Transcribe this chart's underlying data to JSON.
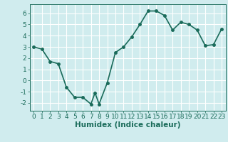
{
  "x": [
    0,
    1,
    2,
    3,
    4,
    5,
    6,
    7,
    7.5,
    8,
    9,
    10,
    11,
    12,
    13,
    14,
    15,
    16,
    17,
    18,
    19,
    20,
    21,
    22,
    23
  ],
  "y": [
    3.0,
    2.8,
    1.7,
    1.5,
    -0.6,
    -1.5,
    -1.5,
    -2.1,
    -1.1,
    -2.1,
    -0.2,
    2.5,
    3.0,
    3.9,
    5.0,
    6.2,
    6.2,
    5.8,
    4.5,
    5.2,
    5.0,
    4.5,
    3.1,
    3.2,
    4.6
  ],
  "line_color": "#1a6b5a",
  "marker_color": "#1a6b5a",
  "bg_color": "#d0ecee",
  "grid_color": "#ffffff",
  "xlabel": "Humidex (Indice chaleur)",
  "xlim": [
    -0.5,
    23.5
  ],
  "ylim": [
    -2.7,
    6.8
  ],
  "xticks": [
    0,
    1,
    2,
    3,
    4,
    5,
    6,
    7,
    8,
    9,
    10,
    11,
    12,
    13,
    14,
    15,
    16,
    17,
    18,
    19,
    20,
    21,
    22,
    23
  ],
  "yticks": [
    -2,
    -1,
    0,
    1,
    2,
    3,
    4,
    5,
    6
  ],
  "xlabel_fontsize": 7.5,
  "tick_fontsize": 6.5,
  "linewidth": 1.2,
  "markersize": 2.5
}
